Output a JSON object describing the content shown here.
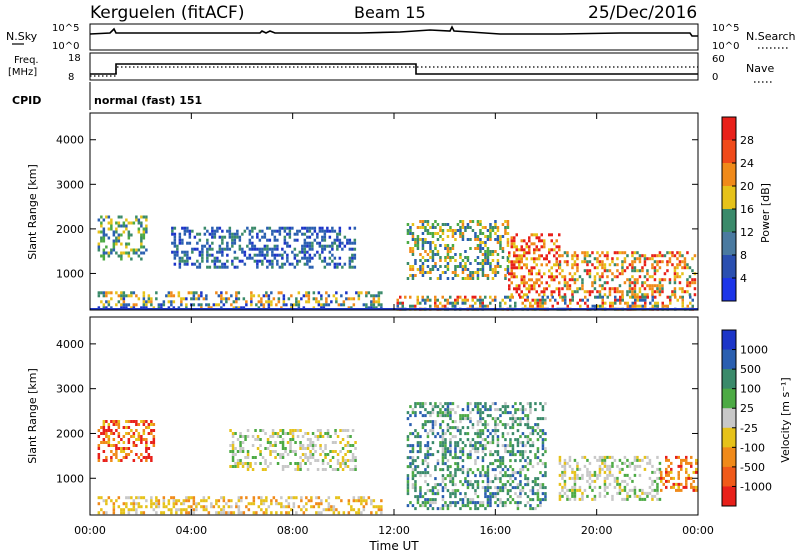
{
  "header": {
    "station": "Kerguelen (fitACF)",
    "beam": "Beam 15",
    "date": "25/Dec/2016"
  },
  "panels": {
    "nsky": {
      "label": "N.Sky",
      "tick_high": "10^5",
      "tick_low": "10^0",
      "right_label": "N.Search",
      "right_high": "10^5",
      "right_low": "10^0"
    },
    "freq": {
      "label_line1": "Freq.",
      "label_line2": "[MHz]",
      "tick_high": "18",
      "tick_low": "8",
      "right_label": "Nave",
      "right_high": "60",
      "right_low": "0"
    },
    "cpid": {
      "label": "CPID",
      "value": "normal (fast) 151"
    }
  },
  "colors": {
    "blue": "#1c35c8",
    "mid_blue": "#2a5fb0",
    "teal": "#3a8a6a",
    "green": "#4caa44",
    "yellow": "#e6c21a",
    "orange": "#f08a1a",
    "red": "#e8201a",
    "grey": "#c8c8c8"
  },
  "chart_data": [
    {
      "type": "heatmap",
      "name": "power",
      "ylabel": "Slant Range [km]",
      "xlabel": "Time UT",
      "x_ticks": [
        "00:00",
        "04:00",
        "08:00",
        "12:00",
        "16:00",
        "20:00",
        "00:00"
      ],
      "x_tick_hours": [
        0,
        4,
        8,
        12,
        16,
        20,
        24
      ],
      "y_ticks": [
        1000,
        2000,
        3000,
        4000
      ],
      "ylim": [
        180,
        4600
      ],
      "colorbar": {
        "label": "Power [dB]",
        "ticks": [
          "4",
          "8",
          "12",
          "16",
          "20",
          "24",
          "28"
        ]
      },
      "regions": [
        {
          "t0": 0.3,
          "t1": 2.2,
          "r0": 1300,
          "r1": 2300,
          "level": "teal"
        },
        {
          "t0": 3.2,
          "t1": 10.5,
          "r0": 1150,
          "r1": 2050,
          "level": "blue"
        },
        {
          "t0": 0.3,
          "t1": 11.5,
          "r0": 220,
          "r1": 600,
          "level": "mid"
        },
        {
          "t0": 12.5,
          "t1": 16.5,
          "r0": 900,
          "r1": 2200,
          "level": "yellow"
        },
        {
          "t0": 16.5,
          "t1": 18.5,
          "r0": 500,
          "r1": 1900,
          "level": "red"
        },
        {
          "t0": 18.5,
          "t1": 23.9,
          "r0": 500,
          "r1": 1500,
          "level": "orange"
        },
        {
          "t0": 12,
          "t1": 23.9,
          "r0": 220,
          "r1": 500,
          "level": "mixed"
        }
      ]
    },
    {
      "type": "heatmap",
      "name": "velocity",
      "ylabel": "Slant Range [km]",
      "xlabel": "Time UT",
      "x_ticks": [
        "00:00",
        "04:00",
        "08:00",
        "12:00",
        "16:00",
        "20:00",
        "00:00"
      ],
      "x_tick_hours": [
        0,
        4,
        8,
        12,
        16,
        20,
        24
      ],
      "y_ticks": [
        1000,
        2000,
        3000,
        4000
      ],
      "ylim": [
        180,
        4600
      ],
      "colorbar": {
        "label": "Velocity [m s⁻¹]",
        "ticks": [
          "1000",
          "500",
          "100",
          "25",
          "-25",
          "-100",
          "-500",
          "-1000"
        ]
      },
      "regions": [
        {
          "t0": 0.3,
          "t1": 2.5,
          "r0": 1400,
          "r1": 2300,
          "level": "red"
        },
        {
          "t0": 5.5,
          "t1": 10.5,
          "r0": 1200,
          "r1": 2100,
          "level": "grey"
        },
        {
          "t0": 0.3,
          "t1": 11.5,
          "r0": 220,
          "r1": 600,
          "level": "yellow"
        },
        {
          "t0": 12.5,
          "t1": 18.0,
          "r0": 300,
          "r1": 2700,
          "level": "green"
        },
        {
          "t0": 18.5,
          "t1": 22.5,
          "r0": 500,
          "r1": 1500,
          "level": "grey"
        },
        {
          "t0": 22.5,
          "t1": 23.9,
          "r0": 700,
          "r1": 1500,
          "level": "orange"
        }
      ]
    }
  ]
}
